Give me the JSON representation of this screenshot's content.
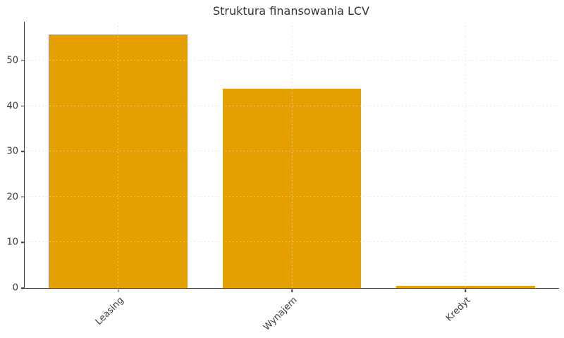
{
  "chart_data": {
    "type": "bar",
    "title": "Struktura finansowania LCV",
    "categories": [
      "Leasing",
      "Wynajem",
      "Kredyt"
    ],
    "values": [
      55.7,
      43.8,
      0.5
    ],
    "xlabel": "",
    "ylabel": "",
    "ylim": [
      0,
      58.5
    ],
    "yticks": [
      0,
      10,
      20,
      30,
      40,
      50
    ],
    "xtick_rotation_deg": 45,
    "bar_color": "#E69F00",
    "grid": true,
    "grid_style": "dashed",
    "grid_color": "#dedede",
    "axis_color": "#3d3d3d",
    "text_color": "#3b3b3b",
    "background": "#ffffff",
    "legend_position": "none"
  }
}
